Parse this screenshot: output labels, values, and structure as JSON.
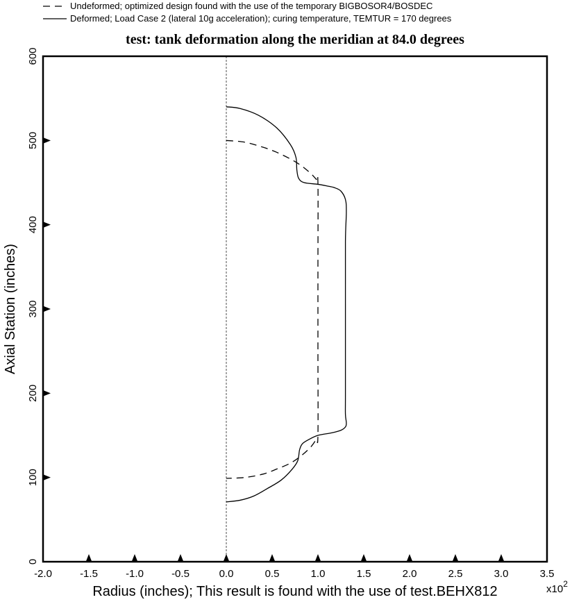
{
  "chart_data": {
    "type": "line",
    "title": "test: tank deformation along the meridian at 84.0 degrees",
    "xlabel": "Radius (inches); This result is found with the use of test.BEHX812",
    "ylabel": "Axial Station (inches)",
    "x_multiplier_label": "x10",
    "x_multiplier_exponent": "2",
    "xlim": [
      -2.0,
      3.5
    ],
    "ylim": [
      0,
      600
    ],
    "x_ticks": [
      "-2.0",
      "-1.5",
      "-1.0",
      "-0.5",
      "0.0",
      "0.5",
      "1.0",
      "1.5",
      "2.0",
      "2.5",
      "3.0",
      "3.5"
    ],
    "x_tick_values": [
      -2.0,
      -1.5,
      -1.0,
      -0.5,
      0.0,
      0.5,
      1.0,
      1.5,
      2.0,
      2.5,
      3.0,
      3.5
    ],
    "y_ticks": [
      "0",
      "100",
      "200",
      "300",
      "400",
      "500",
      "600"
    ],
    "y_tick_values": [
      0,
      100,
      200,
      300,
      400,
      500,
      600
    ],
    "grid": false,
    "legend_position": "top-left, above plot",
    "series": [
      {
        "name": "Undeformed; optimized design found with the use of the temporary BIGBOSOR4/BOSDEC",
        "style": "dashed",
        "x": [
          0.0,
          0.2,
          0.4,
          0.55,
          0.7,
          0.82,
          0.92,
          0.98,
          1.0,
          1.0,
          1.0,
          1.0,
          0.98,
          0.92,
          0.82,
          0.7,
          0.55,
          0.4,
          0.2,
          0.0
        ],
        "y": [
          500,
          498,
          492,
          486,
          478,
          470,
          461,
          454,
          450,
          350,
          250,
          150,
          145,
          136,
          126,
          117,
          110,
          104,
          100,
          99
        ]
      },
      {
        "name": "Deformed; Load Case 2 (lateral 10g acceleration); curing temperature, TEMTUR = 170 degrees",
        "style": "solid",
        "x": [
          0.0,
          0.15,
          0.35,
          0.55,
          0.7,
          0.76,
          0.77,
          0.79,
          0.85,
          1.0,
          1.1,
          1.18,
          1.25,
          1.3,
          1.31,
          1.3,
          1.3,
          1.3,
          1.3,
          1.31,
          1.3,
          1.25,
          1.15,
          1.0,
          0.9,
          0.83,
          0.8,
          0.78,
          0.72,
          0.6,
          0.45,
          0.3,
          0.15,
          0.0
        ],
        "y": [
          540,
          538,
          530,
          515,
          495,
          480,
          465,
          455,
          450,
          448,
          446,
          444,
          440,
          430,
          415,
          380,
          300,
          200,
          175,
          165,
          160,
          156,
          153,
          150,
          145,
          140,
          133,
          120,
          110,
          97,
          87,
          78,
          73,
          71
        ]
      }
    ]
  }
}
